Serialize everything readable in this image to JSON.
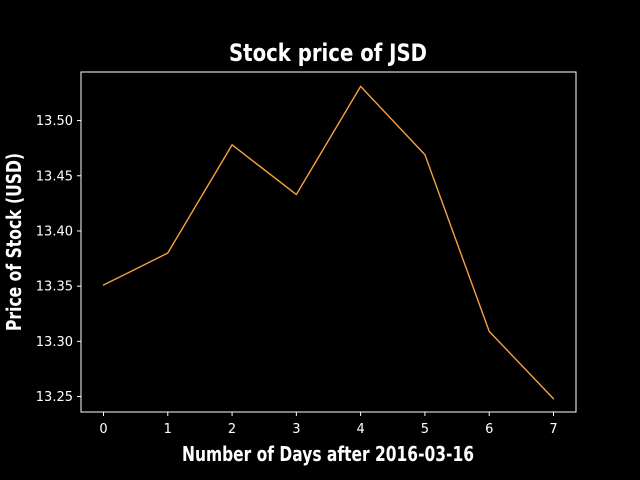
{
  "chart_data": {
    "type": "line",
    "title": "Stock price of JSD",
    "xlabel": "Number of Days after 2016-03-16",
    "ylabel": "Price of Stock (USD)",
    "x": [
      0,
      1,
      2,
      3,
      4,
      5,
      6,
      7
    ],
    "series": [
      {
        "values": [
          13.351,
          13.38,
          13.478,
          13.433,
          13.531,
          13.469,
          13.309,
          13.248
        ],
        "color": "#f5a142"
      }
    ],
    "xticks": [
      "0",
      "1",
      "2",
      "3",
      "4",
      "5",
      "6",
      "7"
    ],
    "yticks": [
      "13.25",
      "13.30",
      "13.35",
      "13.40",
      "13.45",
      "13.50"
    ],
    "xlim": [
      -0.35,
      7.35
    ],
    "ylim": [
      13.236,
      13.544
    ],
    "grid": false,
    "background": "#000000",
    "axis_color": "#ffffff"
  }
}
